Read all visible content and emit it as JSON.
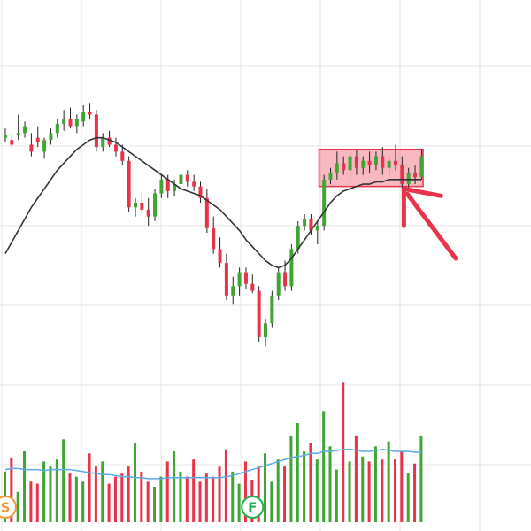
{
  "chart_data": {
    "type": "candlestick",
    "grid": true,
    "colors": {
      "up": "#3fa535",
      "down": "#e8334a",
      "ma": "#333333",
      "volume_ma": "#5aabe6",
      "highlight": "#e8334a",
      "grid": "#e6e6e6"
    },
    "price": {
      "ylim": [
        0,
        100
      ],
      "candles": [
        {
          "o": 78,
          "h": 82,
          "l": 76,
          "c": 79
        },
        {
          "o": 77,
          "h": 79,
          "l": 74,
          "c": 75
        },
        {
          "o": 79,
          "h": 88,
          "l": 77,
          "c": 80
        },
        {
          "o": 80,
          "h": 85,
          "l": 78,
          "c": 83
        },
        {
          "o": 75,
          "h": 80,
          "l": 70,
          "c": 72
        },
        {
          "o": 78,
          "h": 83,
          "l": 74,
          "c": 76
        },
        {
          "o": 72,
          "h": 78,
          "l": 69,
          "c": 77
        },
        {
          "o": 77,
          "h": 82,
          "l": 75,
          "c": 80
        },
        {
          "o": 80,
          "h": 86,
          "l": 78,
          "c": 84
        },
        {
          "o": 84,
          "h": 90,
          "l": 81,
          "c": 86
        },
        {
          "o": 86,
          "h": 91,
          "l": 82,
          "c": 83
        },
        {
          "o": 83,
          "h": 88,
          "l": 80,
          "c": 86
        },
        {
          "o": 85,
          "h": 92,
          "l": 83,
          "c": 89
        },
        {
          "o": 89,
          "h": 93,
          "l": 86,
          "c": 88
        },
        {
          "o": 88,
          "h": 90,
          "l": 72,
          "c": 74
        },
        {
          "o": 74,
          "h": 80,
          "l": 72,
          "c": 78
        },
        {
          "o": 78,
          "h": 81,
          "l": 74,
          "c": 75
        },
        {
          "o": 75,
          "h": 78,
          "l": 70,
          "c": 72
        },
        {
          "o": 72,
          "h": 75,
          "l": 66,
          "c": 68
        },
        {
          "o": 68,
          "h": 70,
          "l": 46,
          "c": 48
        },
        {
          "o": 48,
          "h": 52,
          "l": 44,
          "c": 50
        },
        {
          "o": 50,
          "h": 54,
          "l": 45,
          "c": 47
        },
        {
          "o": 47,
          "h": 52,
          "l": 40,
          "c": 44
        },
        {
          "o": 44,
          "h": 56,
          "l": 42,
          "c": 54
        },
        {
          "o": 54,
          "h": 62,
          "l": 52,
          "c": 60
        },
        {
          "o": 60,
          "h": 62,
          "l": 52,
          "c": 55
        },
        {
          "o": 55,
          "h": 60,
          "l": 53,
          "c": 58
        },
        {
          "o": 58,
          "h": 63,
          "l": 56,
          "c": 62
        },
        {
          "o": 62,
          "h": 64,
          "l": 57,
          "c": 59
        },
        {
          "o": 59,
          "h": 62,
          "l": 55,
          "c": 57
        },
        {
          "o": 57,
          "h": 59,
          "l": 50,
          "c": 52
        },
        {
          "o": 52,
          "h": 56,
          "l": 37,
          "c": 39
        },
        {
          "o": 39,
          "h": 44,
          "l": 28,
          "c": 30
        },
        {
          "o": 30,
          "h": 35,
          "l": 22,
          "c": 24
        },
        {
          "o": 24,
          "h": 28,
          "l": 8,
          "c": 10
        },
        {
          "o": 10,
          "h": 18,
          "l": 6,
          "c": 14
        },
        {
          "o": 14,
          "h": 22,
          "l": 10,
          "c": 20
        },
        {
          "o": 20,
          "h": 22,
          "l": 13,
          "c": 15
        },
        {
          "o": 15,
          "h": 19,
          "l": 11,
          "c": 12
        },
        {
          "o": 12,
          "h": 14,
          "l": -10,
          "c": -8
        },
        {
          "o": -8,
          "h": 0,
          "l": -12,
          "c": -2
        },
        {
          "o": -2,
          "h": 12,
          "l": -4,
          "c": 10
        },
        {
          "o": 10,
          "h": 22,
          "l": 8,
          "c": 20
        },
        {
          "o": 20,
          "h": 25,
          "l": 12,
          "c": 14
        },
        {
          "o": 14,
          "h": 32,
          "l": 12,
          "c": 30
        },
        {
          "o": 30,
          "h": 42,
          "l": 28,
          "c": 40
        },
        {
          "o": 40,
          "h": 45,
          "l": 38,
          "c": 43
        },
        {
          "o": 43,
          "h": 45,
          "l": 36,
          "c": 38
        },
        {
          "o": 38,
          "h": 42,
          "l": 32,
          "c": 40
        },
        {
          "o": 40,
          "h": 62,
          "l": 38,
          "c": 60
        },
        {
          "o": 60,
          "h": 65,
          "l": 58,
          "c": 63
        },
        {
          "o": 63,
          "h": 72,
          "l": 60,
          "c": 67
        },
        {
          "o": 67,
          "h": 70,
          "l": 62,
          "c": 64
        },
        {
          "o": 64,
          "h": 72,
          "l": 60,
          "c": 70
        },
        {
          "o": 70,
          "h": 73,
          "l": 62,
          "c": 65
        },
        {
          "o": 65,
          "h": 70,
          "l": 62,
          "c": 68
        },
        {
          "o": 68,
          "h": 72,
          "l": 63,
          "c": 66
        },
        {
          "o": 66,
          "h": 72,
          "l": 64,
          "c": 70
        },
        {
          "o": 70,
          "h": 74,
          "l": 62,
          "c": 65
        },
        {
          "o": 65,
          "h": 70,
          "l": 62,
          "c": 68
        },
        {
          "o": 68,
          "h": 75,
          "l": 64,
          "c": 66
        },
        {
          "o": 66,
          "h": 70,
          "l": 56,
          "c": 58
        },
        {
          "o": 58,
          "h": 65,
          "l": 55,
          "c": 63
        },
        {
          "o": 63,
          "h": 66,
          "l": 58,
          "c": 61
        },
        {
          "o": 61,
          "h": 73,
          "l": 60,
          "c": 70
        }
      ],
      "moving_average": [
        28,
        33,
        38,
        43,
        48,
        52,
        56,
        60,
        64,
        67,
        70,
        73,
        75,
        77,
        78,
        78,
        77,
        76,
        74,
        72,
        70,
        68,
        66,
        64,
        62,
        60,
        58,
        56,
        55,
        54,
        53,
        51,
        49,
        47,
        44,
        41,
        38,
        34,
        31,
        28,
        25,
        23,
        22,
        23,
        26,
        30,
        34,
        38,
        42,
        46,
        50,
        53,
        55,
        56,
        57,
        58,
        58,
        59,
        59,
        60,
        60,
        60,
        60,
        60,
        60
      ],
      "highlight_box": {
        "x_start": 48.5,
        "x_end": 64.5,
        "y_low": 57,
        "y_high": 73
      }
    },
    "volume": {
      "values": [
        50,
        64,
        30,
        70,
        40,
        38,
        60,
        55,
        62,
        82,
        48,
        45,
        40,
        68,
        55,
        60,
        38,
        45,
        48,
        55,
        78,
        50,
        40,
        35,
        45,
        60,
        70,
        50,
        45,
        62,
        40,
        48,
        45,
        55,
        72,
        50,
        38,
        60,
        42,
        55,
        68,
        40,
        62,
        55,
        85,
        98,
        70,
        78,
        62,
        110,
        75,
        52,
        138,
        60,
        85,
        65,
        60,
        75,
        62,
        80,
        62,
        70,
        48,
        58,
        85
      ],
      "moving_average": [
        52,
        53,
        53,
        52,
        52,
        52,
        51,
        52,
        52,
        52,
        52,
        51,
        50,
        49,
        48,
        47,
        47,
        46,
        45,
        45,
        44,
        44,
        43,
        43,
        43,
        44,
        44,
        44,
        44,
        44,
        44,
        44,
        44,
        44,
        45,
        46,
        48,
        50,
        52,
        54,
        56,
        58,
        60,
        62,
        64,
        65,
        66,
        68,
        68,
        70,
        70,
        71,
        72,
        72,
        71,
        70,
        70,
        71,
        72,
        71,
        70,
        70,
        70,
        69,
        69
      ],
      "ylim": [
        0,
        140
      ]
    },
    "markers": [
      {
        "label": "S",
        "index": 0,
        "color": "#f29a3c"
      },
      {
        "label": "F",
        "index": 38,
        "color": "#22b14c"
      }
    ],
    "annotation": {
      "type": "arrow",
      "color": "#e8334a",
      "points_to_index": 61
    }
  }
}
